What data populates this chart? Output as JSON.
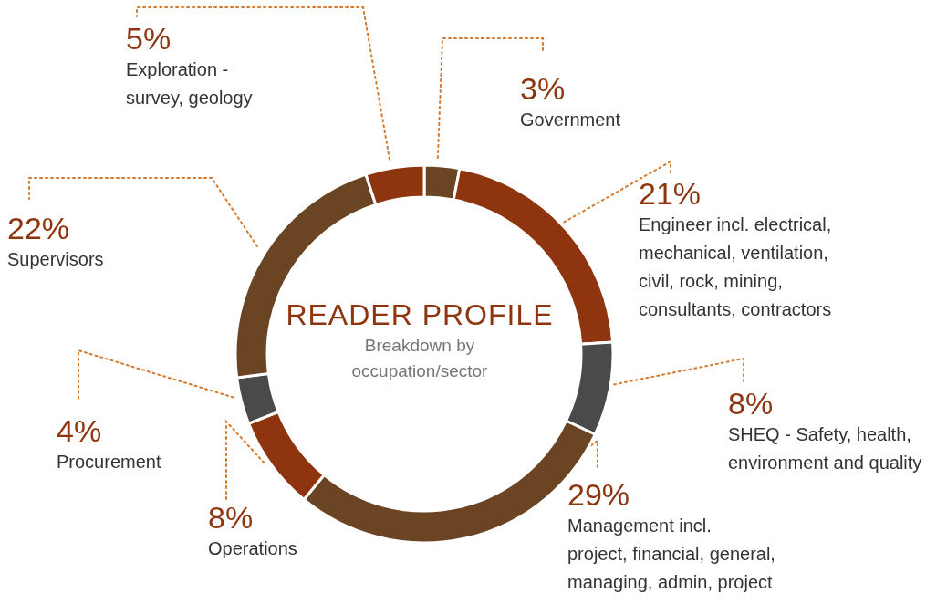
{
  "chart_data": {
    "type": "donut",
    "title": "READER PROFILE",
    "subtitle": "Breakdown by\noccupation/sector",
    "categories": [
      "Government",
      "Engineer incl. electrical,\nmechanical, ventilation,\ncivil, rock, mining,\nconsultants, contractors",
      "SHEQ - Safety, health,\nenvironment and quality",
      "Management incl.\nproject, financial, general,\nmanaging, admin, project",
      "Operations",
      "Procurement",
      "Supervisors",
      "Exploration -\nsurvey, geology"
    ],
    "values": [
      3,
      21,
      8,
      29,
      8,
      4,
      22,
      5
    ],
    "value_labels": [
      "3%",
      "21%",
      "8%",
      "29%",
      "8%",
      "4%",
      "22%",
      "5%"
    ],
    "colors": [
      "#6b4423",
      "#8e3510",
      "#4a4a4a",
      "#6b4423",
      "#8e3510",
      "#4a4a4a",
      "#6b4423",
      "#8e3510"
    ],
    "legend": false
  }
}
